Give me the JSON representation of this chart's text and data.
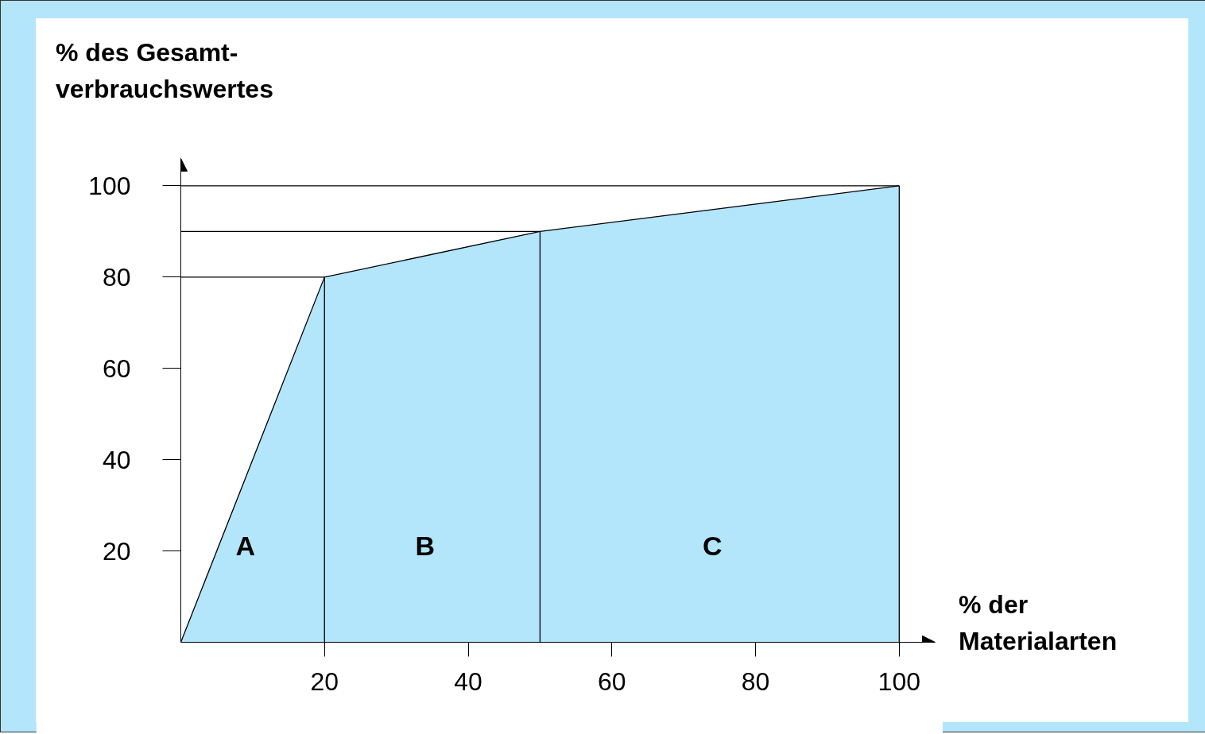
{
  "chart_data": {
    "type": "area",
    "xlabel": "% der\nMaterialarten",
    "ylabel": "% des Gesamt-\nverbrauchswertes",
    "x": [
      0,
      20,
      50,
      100
    ],
    "series": [
      {
        "color": "#b3e5fb",
        "values": [
          0,
          80,
          90,
          100
        ]
      }
    ],
    "xlim": [
      0,
      105
    ],
    "ylim": [
      0,
      106
    ],
    "xticks": [
      20,
      40,
      60,
      80,
      100
    ],
    "yticks": [
      20,
      40,
      60,
      80,
      100
    ],
    "grid": false,
    "ref_lines": [
      {
        "axis": "y",
        "value": 80
      },
      {
        "axis": "y",
        "value": 90
      },
      {
        "axis": "y",
        "value": 100
      },
      {
        "axis": "x",
        "value": 20
      },
      {
        "axis": "x",
        "value": 50
      },
      {
        "axis": "x",
        "value": 100
      }
    ],
    "annotations": [
      "A",
      "B",
      "C"
    ]
  }
}
